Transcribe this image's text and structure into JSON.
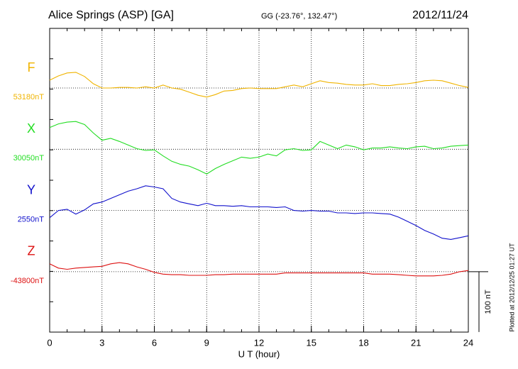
{
  "chart_data": {
    "type": "line",
    "title": "Alice Springs (ASP)  [GA]",
    "subtitle": "GG (-23.76°, 132.47°)",
    "date": "2012/11/24",
    "x_label": "U T (hour)",
    "footer": "Plotted at 2012/12/25 01:27 UT",
    "scale_bar": {
      "value": 100,
      "label": "100 nT"
    },
    "xlim": [
      0,
      24
    ],
    "xticks": [
      0,
      3,
      6,
      9,
      12,
      15,
      18,
      21,
      24
    ],
    "grid": true,
    "x": [
      0,
      0.5,
      1,
      1.5,
      2,
      2.5,
      3,
      3.5,
      4,
      4.5,
      5,
      5.5,
      6,
      6.5,
      7,
      7.5,
      8,
      8.5,
      9,
      9.5,
      10,
      10.5,
      11,
      11.5,
      12,
      12.5,
      13,
      13.5,
      14,
      14.5,
      15,
      15.5,
      16,
      16.5,
      17,
      17.5,
      18,
      18.5,
      19,
      19.5,
      20,
      20.5,
      21,
      21.5,
      22,
      22.5,
      23,
      23.5,
      24
    ],
    "series": [
      {
        "name": "F",
        "color": "#f0b400",
        "baseline": {
          "value": 53180,
          "label": "53180nT"
        },
        "values": [
          53193,
          53200,
          53205,
          53206,
          53199,
          53187,
          53180,
          53180,
          53181,
          53181,
          53180,
          53182,
          53180,
          53185,
          53180,
          53178,
          53173,
          53168,
          53165,
          53169,
          53175,
          53176,
          53179,
          53180,
          53179,
          53179,
          53179,
          53182,
          53185,
          53182,
          53187,
          53192,
          53189,
          53188,
          53186,
          53185,
          53185,
          53187,
          53184,
          53184,
          53186,
          53187,
          53189,
          53192,
          53193,
          53192,
          53188,
          53184,
          53181
        ]
      },
      {
        "name": "X",
        "color": "#22dd22",
        "baseline": {
          "value": 30050,
          "label": "30050nT"
        },
        "values": [
          30086,
          30092,
          30095,
          30096,
          30091,
          30077,
          30065,
          30068,
          30063,
          30057,
          30051,
          30048,
          30049,
          30039,
          30030,
          30025,
          30022,
          30016,
          30009,
          30018,
          30025,
          30031,
          30037,
          30035,
          30037,
          30042,
          30039,
          30049,
          30051,
          30048,
          30049,
          30063,
          30057,
          30051,
          30057,
          30054,
          30049,
          30052,
          30052,
          30054,
          30052,
          30051,
          30054,
          30055,
          30051,
          30052,
          30055,
          30056,
          30057
        ]
      },
      {
        "name": "Y",
        "color": "#1010cc",
        "baseline": {
          "value": 2550,
          "label": "2550nT"
        },
        "values": [
          2538,
          2550,
          2552,
          2544,
          2551,
          2561,
          2564,
          2570,
          2576,
          2582,
          2586,
          2591,
          2589,
          2586,
          2570,
          2564,
          2561,
          2558,
          2562,
          2558,
          2558,
          2557,
          2558,
          2556,
          2556,
          2556,
          2555,
          2556,
          2550,
          2549,
          2550,
          2549,
          2549,
          2546,
          2546,
          2545,
          2546,
          2546,
          2545,
          2544,
          2539,
          2532,
          2525,
          2517,
          2511,
          2504,
          2502,
          2505,
          2508
        ]
      },
      {
        "name": "Z",
        "color": "#dd1111",
        "baseline": {
          "value": -43800,
          "label": "-43800nT"
        },
        "values": [
          -43787,
          -43794,
          -43796,
          -43794,
          -43793,
          -43792,
          -43791,
          -43787,
          -43785,
          -43787,
          -43792,
          -43796,
          -43801,
          -43804,
          -43805,
          -43805,
          -43806,
          -43806,
          -43806,
          -43805,
          -43805,
          -43804,
          -43804,
          -43804,
          -43804,
          -43804,
          -43804,
          -43802,
          -43802,
          -43802,
          -43802,
          -43802,
          -43802,
          -43802,
          -43802,
          -43802,
          -43802,
          -43804,
          -43804,
          -43804,
          -43805,
          -43806,
          -43807,
          -43807,
          -43807,
          -43806,
          -43804,
          -43800,
          -43798
        ]
      }
    ]
  }
}
